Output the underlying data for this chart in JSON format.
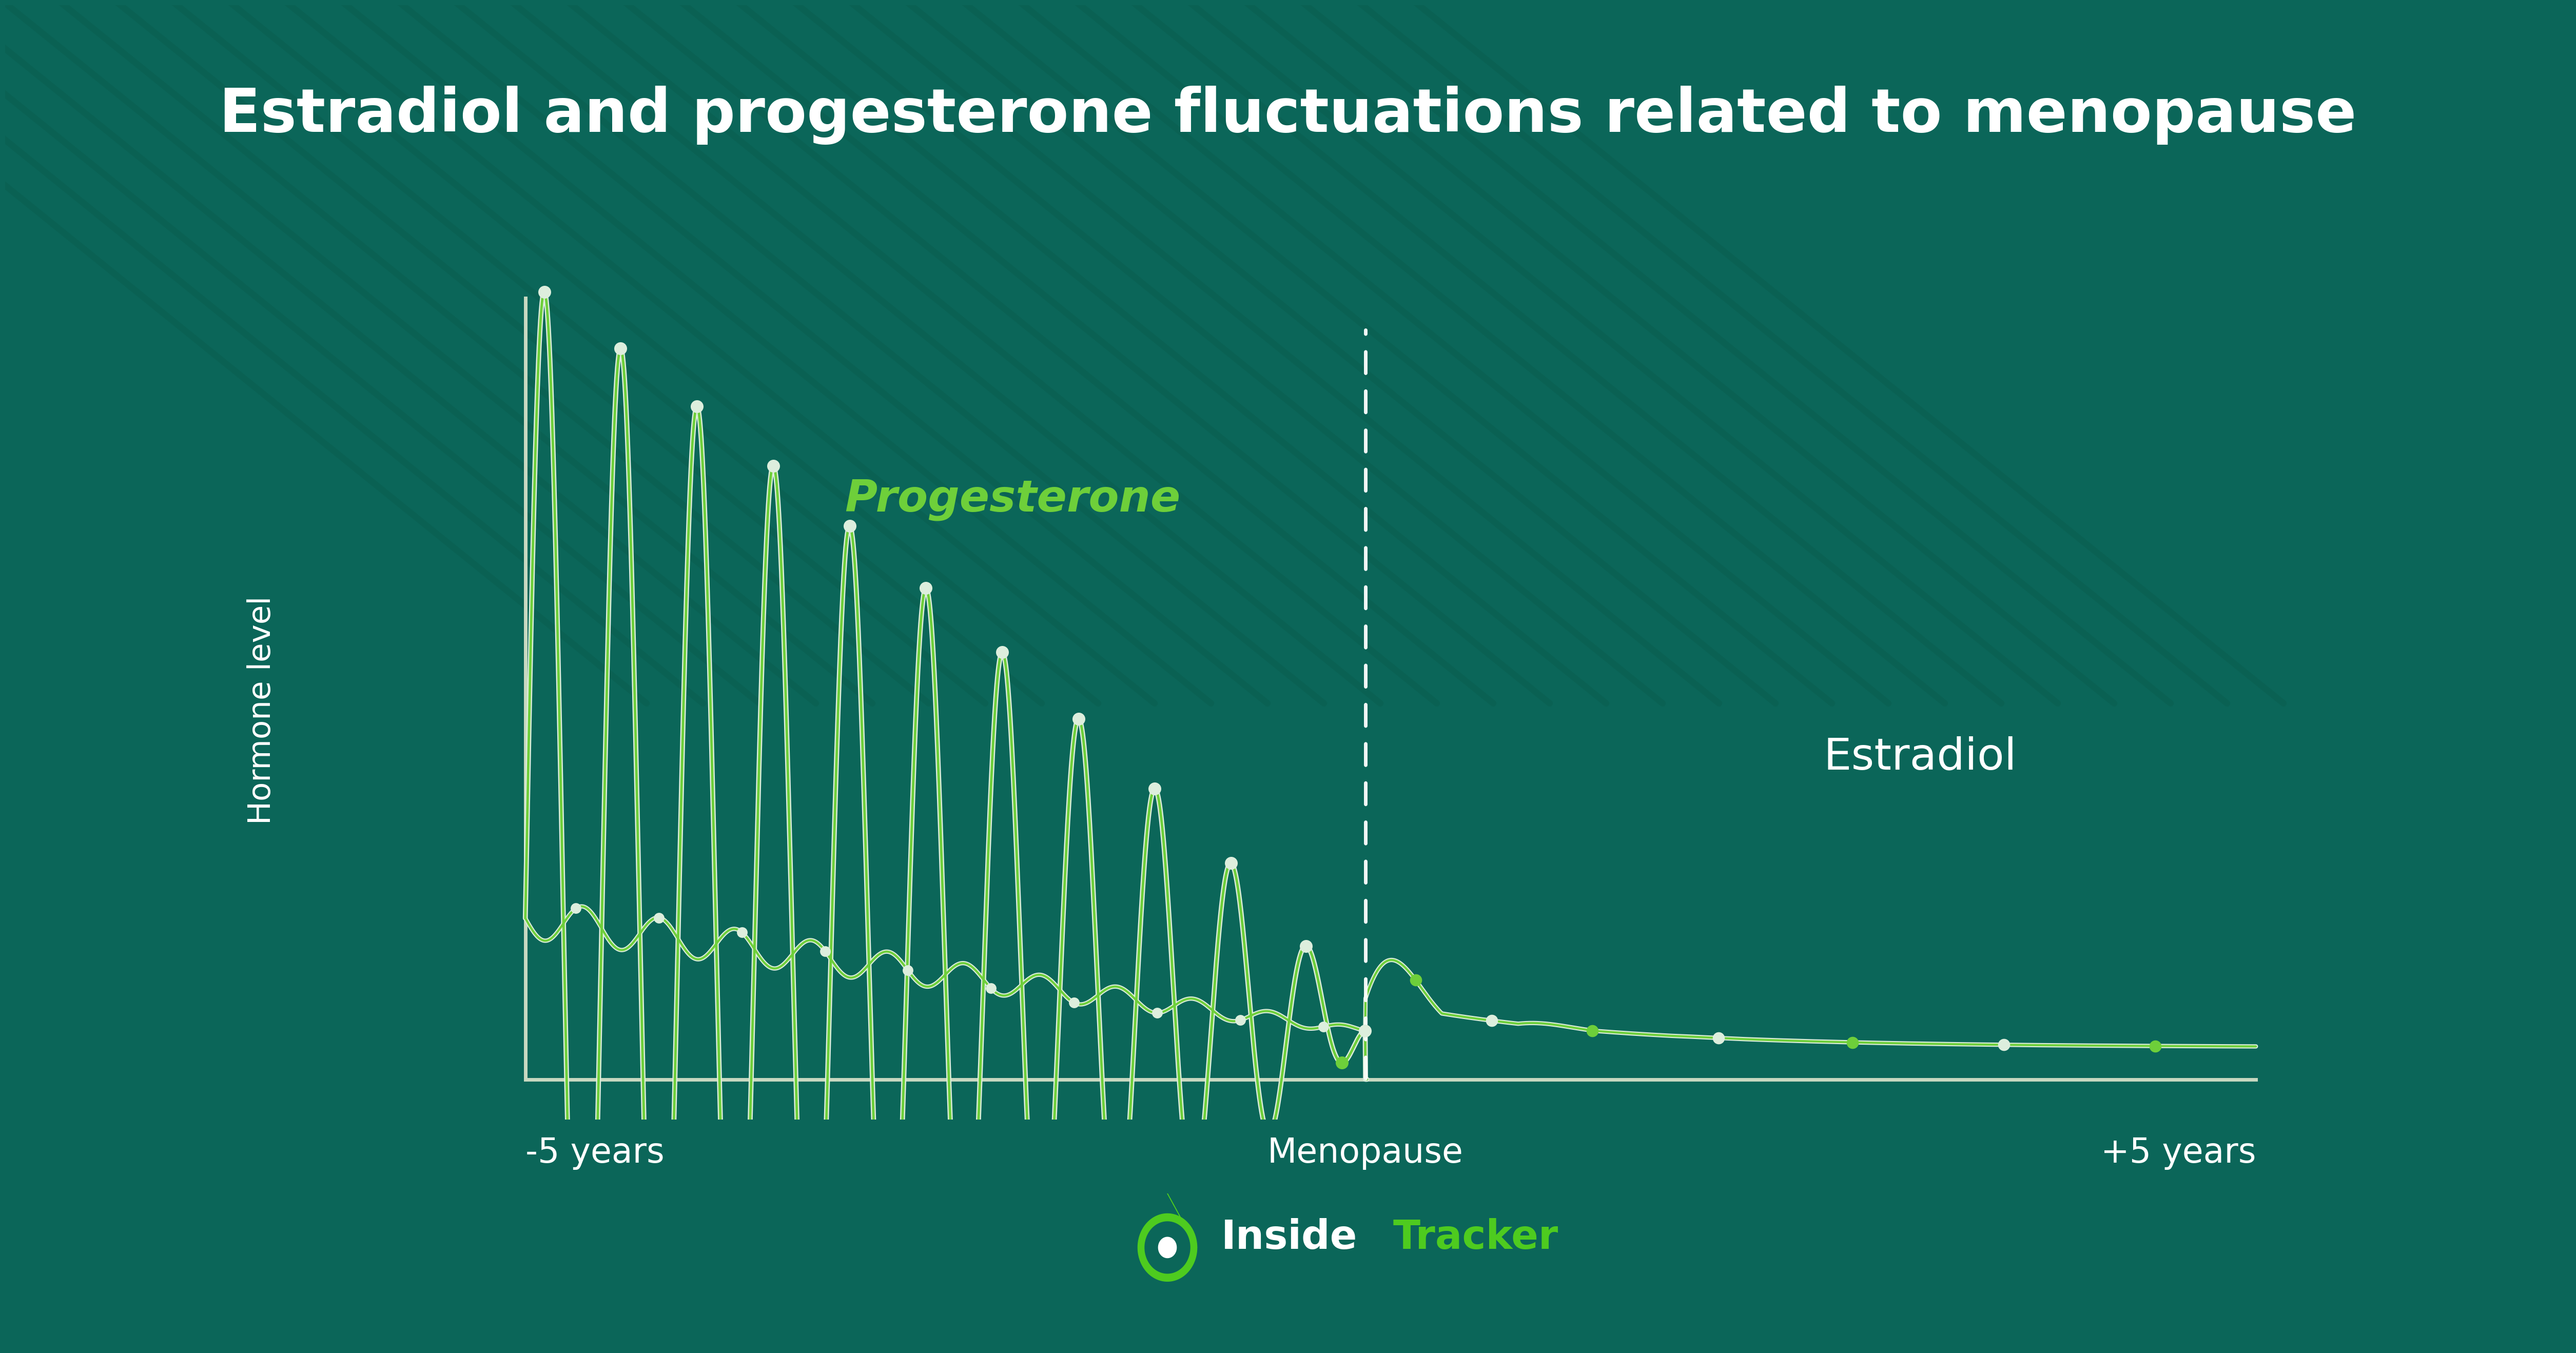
{
  "title": "Estradiol and progesterone fluctuations related to menopause",
  "bg_color": "#0b6659",
  "stripe_color": "#0a5f50",
  "title_color": "#ffffff",
  "title_fontsize": 85,
  "ylabel": "Hormone level",
  "ylabel_color": "#ffffff",
  "ylabel_fontsize": 44,
  "axis_color": "#c8d8c0",
  "progesterone_white_color": "#ddeedd",
  "progesterone_green_color": "#6ecf3a",
  "progesterone_label": "Progesterone",
  "progesterone_label_color": "#6ecf3a",
  "progesterone_label_fontsize": 62,
  "estradiol_white_color": "#ddeedd",
  "estradiol_green_color": "#6ecf3a",
  "estradiol_label": "Estradiol",
  "estradiol_label_color": "#ffffff",
  "estradiol_label_fontsize": 62,
  "menopause_label": "Menopause",
  "menopause_label_color": "#ffffff",
  "menopause_label_fontsize": 48,
  "x_minus5_label": "-5 years",
  "x_plus5_label": "+5 years",
  "x_label_fontsize": 48,
  "x_label_color": "#ffffff",
  "dashed_line_color": "#ffffff",
  "dot_color_green": "#6ecf3a",
  "dot_color_white": "#ddeedd",
  "inside_color": "#ffffff",
  "tracker_color": "#4ecb1f",
  "logo_fontsize": 56
}
